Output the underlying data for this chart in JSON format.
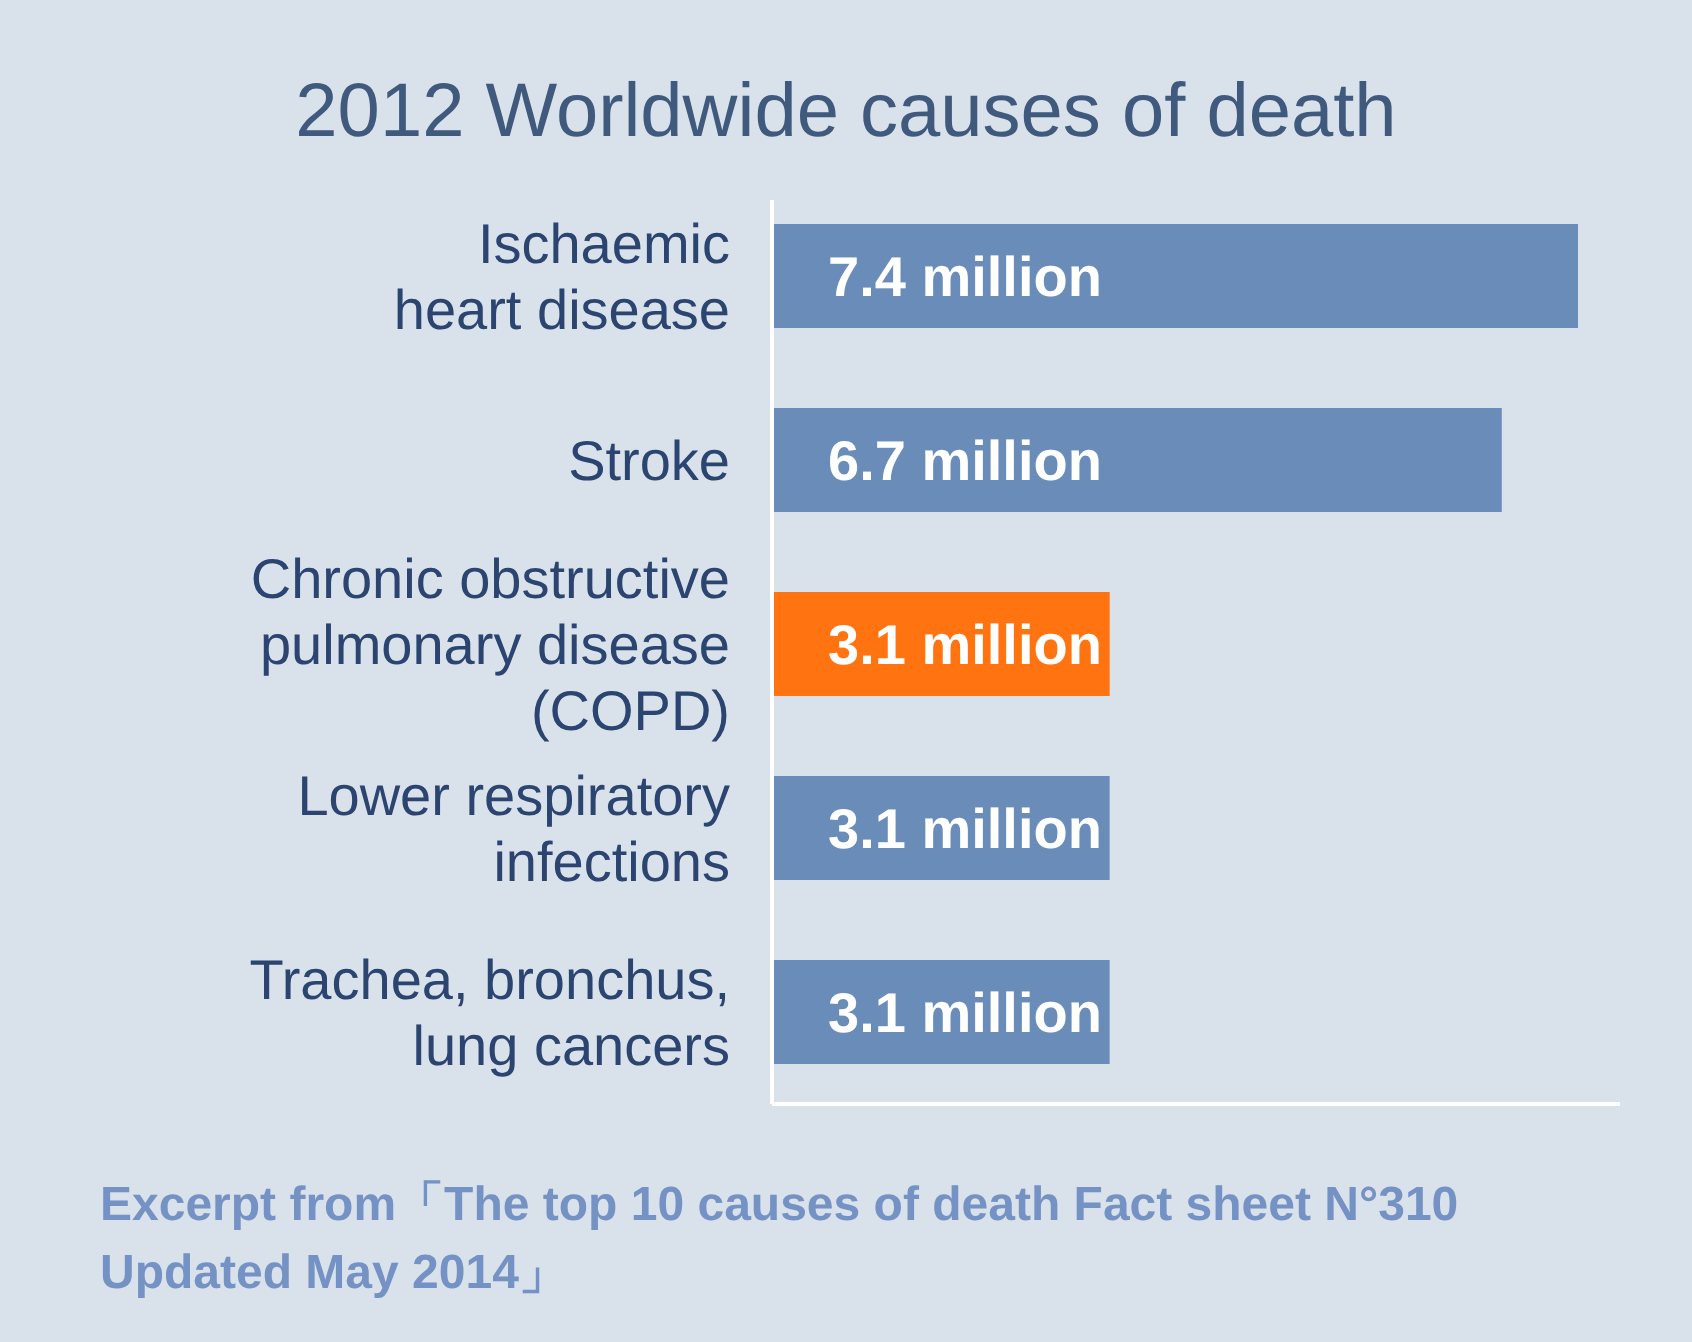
{
  "chart_data": {
    "type": "bar",
    "orientation": "horizontal",
    "title": "2012 Worldwide causes of death",
    "categories": [
      "Ischaemic\nheart disease",
      "Stroke",
      "Chronic obstructive\npulmonary disease\n(COPD)",
      "Lower respiratory\ninfections",
      "Trachea, bronchus,\nlung cancers"
    ],
    "values": [
      7.4,
      6.7,
      3.1,
      3.1,
      3.1
    ],
    "value_labels": [
      "7.4 million",
      "6.7 million",
      "3.1 million",
      "3.1 million",
      "3.1 million"
    ],
    "colors": [
      "#6a8cb9",
      "#6a8cb9",
      "#ff7410",
      "#6a8cb9",
      "#6a8cb9"
    ],
    "annotations": [
      "Excerpt from「The top 10 causes of death Fact sheet N°310 Updated  May 2014」"
    ]
  }
}
